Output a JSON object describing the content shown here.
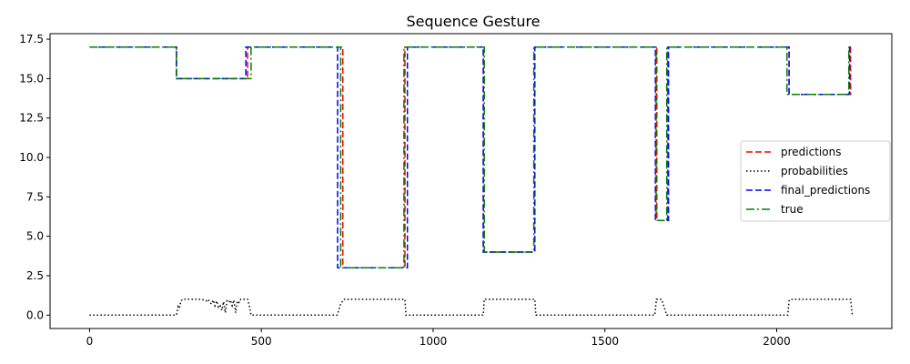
{
  "chart_data": {
    "type": "line",
    "title": "Sequence Gesture",
    "xlabel": "",
    "ylabel": "",
    "xlim": [
      -115,
      2335
    ],
    "ylim": [
      -0.85,
      17.85
    ],
    "grid": false,
    "legend_position": "center-right",
    "x_ticks": [
      {
        "value": 0,
        "label": "0"
      },
      {
        "value": 500,
        "label": "500"
      },
      {
        "value": 1000,
        "label": "1000"
      },
      {
        "value": 1500,
        "label": "1500"
      },
      {
        "value": 2000,
        "label": "2000"
      }
    ],
    "y_ticks": [
      {
        "value": 0,
        "label": "0.0"
      },
      {
        "value": 2.5,
        "label": "2.5"
      },
      {
        "value": 5,
        "label": "5.0"
      },
      {
        "value": 7.5,
        "label": "7.5"
      },
      {
        "value": 10,
        "label": "10.0"
      },
      {
        "value": 12.5,
        "label": "12.5"
      },
      {
        "value": 15,
        "label": "15.0"
      },
      {
        "value": 17.5,
        "label": "17.5"
      }
    ],
    "series": [
      {
        "name": "predictions",
        "color": "#ff0000",
        "style": "dashed",
        "x": [
          0,
          253,
          253,
          460,
          460,
          737,
          737,
          918,
          918,
          1146,
          1146,
          1296,
          1296,
          1651,
          1651,
          1683,
          1683,
          2036,
          2036,
          2215,
          2215,
          2220
        ],
        "y": [
          17,
          17,
          15,
          15,
          17,
          17,
          3,
          3,
          17,
          17,
          4,
          4,
          17,
          17,
          6,
          6,
          17,
          17,
          14,
          14,
          17,
          17
        ]
      },
      {
        "name": "probabilities",
        "color": "#000000",
        "style": "dotted",
        "x": [
          0,
          253,
          255,
          258,
          262,
          265,
          270,
          290,
          300,
          320,
          335,
          340,
          345,
          350,
          355,
          360,
          365,
          370,
          375,
          380,
          385,
          390,
          395,
          400,
          405,
          410,
          415,
          420,
          425,
          430,
          435,
          440,
          445,
          450,
          455,
          460,
          465,
          470,
          720,
          725,
          728,
          732,
          737,
          740,
          918,
          921,
          1146,
          1149,
          1296,
          1299,
          1645,
          1650,
          1665,
          1680,
          1683,
          2032,
          2036,
          2040,
          2215,
          2220
        ],
        "y": [
          0,
          0,
          0.2,
          0.55,
          0.45,
          0.85,
          1,
          1,
          1,
          1,
          0.95,
          0.9,
          1,
          0.8,
          0.7,
          0.95,
          0.6,
          0.9,
          0.5,
          0.6,
          0.3,
          0.85,
          0.15,
          0.9,
          0.8,
          0.95,
          0.6,
          0.95,
          0.15,
          0.9,
          0.8,
          1,
          1,
          1,
          1,
          1,
          0.6,
          0,
          0,
          0.25,
          0.55,
          0.75,
          0.9,
          1,
          1,
          0,
          0,
          1,
          1,
          0,
          0,
          1,
          1,
          0,
          0,
          0,
          0.9,
          1,
          1,
          0
        ]
      },
      {
        "name": "final_predictions",
        "color": "#0000ff",
        "style": "dashed",
        "x": [
          0,
          253,
          253,
          455,
          455,
          722,
          722,
          925,
          925,
          1146,
          1146,
          1296,
          1296,
          1647,
          1647,
          1685,
          1685,
          2036,
          2036,
          2212,
          2212,
          2220
        ],
        "y": [
          17,
          17,
          15,
          15,
          17,
          17,
          3,
          3,
          17,
          17,
          4,
          4,
          17,
          17,
          6,
          6,
          17,
          17,
          14,
          14,
          17,
          17
        ]
      },
      {
        "name": "true",
        "color": "#008000",
        "style": "dashdot",
        "x": [
          0,
          253,
          253,
          470,
          470,
          731,
          731,
          915,
          915,
          1149,
          1149,
          1293,
          1293,
          1649,
          1649,
          1680,
          1680,
          2030,
          2030,
          2210,
          2210,
          2220
        ],
        "y": [
          17,
          17,
          15,
          15,
          17,
          17,
          3,
          3,
          17,
          17,
          4,
          4,
          17,
          17,
          6,
          6,
          17,
          17,
          14,
          14,
          17,
          17
        ]
      }
    ]
  }
}
